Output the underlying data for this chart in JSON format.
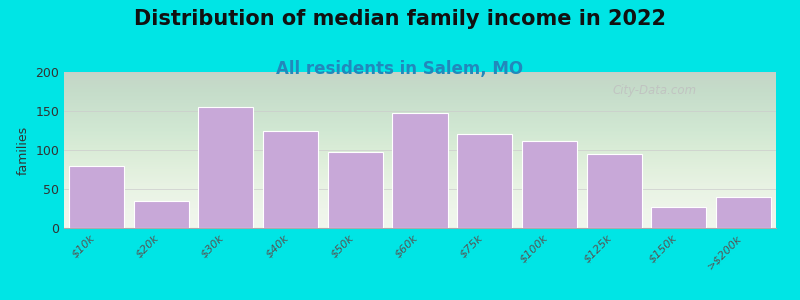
{
  "title": "Distribution of median family income in 2022",
  "subtitle": "All residents in Salem, MO",
  "ylabel": "families",
  "categories": [
    "$10k",
    "$20k",
    "$30k",
    "$40k",
    "$50k",
    "$60k",
    "$75k",
    "$100k",
    "$125k",
    "$150k",
    ">$200k"
  ],
  "values": [
    80,
    35,
    155,
    125,
    98,
    147,
    121,
    111,
    95,
    27,
    40
  ],
  "bar_color": "#c8a8d8",
  "bar_edge_color": "#ffffff",
  "background_color": "#00e5e5",
  "ylim": [
    0,
    200
  ],
  "yticks": [
    0,
    50,
    100,
    150,
    200
  ],
  "title_fontsize": 15,
  "subtitle_fontsize": 12,
  "subtitle_color": "#2288bb",
  "ylabel_fontsize": 9,
  "tick_fontsize": 8,
  "watermark": "City-Data.com"
}
